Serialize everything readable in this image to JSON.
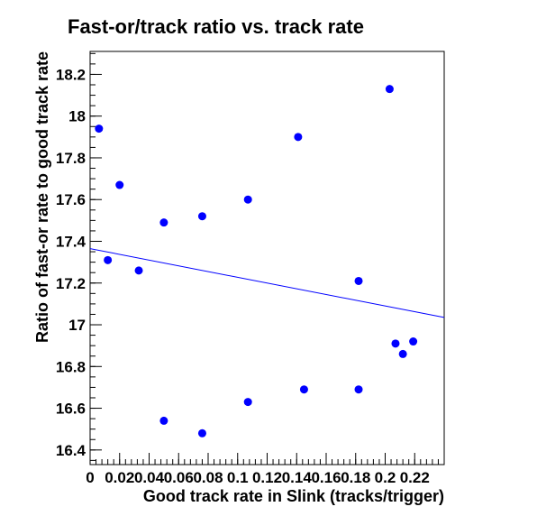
{
  "chart_data": {
    "type": "scatter",
    "title": "Fast-or/track ratio vs. track rate",
    "xlabel": "Good track rate in Slink (tracks/trigger)",
    "ylabel": "Ratio of fast-or rate to good track rate",
    "xlim": [
      0,
      0.24
    ],
    "ylim": [
      16.33,
      18.31
    ],
    "x_ticks": [
      0,
      0.02,
      0.04,
      0.06,
      0.08,
      0.1,
      0.12,
      0.14,
      0.16,
      0.18,
      0.2,
      0.22
    ],
    "x_tick_labels": [
      "0",
      "0.02",
      "0.04",
      "0.06",
      "0.08",
      "0.1",
      "0.12",
      "0.14",
      "0.16",
      "0.18",
      "0.2",
      "0.22"
    ],
    "y_ticks": [
      16.4,
      16.6,
      16.8,
      17,
      17.2,
      17.4,
      17.6,
      17.8,
      18,
      18.2
    ],
    "y_tick_labels": [
      "16.4",
      "16.6",
      "16.8",
      "17",
      "17.2",
      "17.4",
      "17.6",
      "17.8",
      "18",
      "18.2"
    ],
    "grid": false,
    "series": [
      {
        "color": "#0000ff",
        "points": [
          {
            "x": 0.006,
            "y": 17.94
          },
          {
            "x": 0.012,
            "y": 17.31
          },
          {
            "x": 0.02,
            "y": 17.67
          },
          {
            "x": 0.033,
            "y": 17.26
          },
          {
            "x": 0.05,
            "y": 17.49
          },
          {
            "x": 0.05,
            "y": 16.54
          },
          {
            "x": 0.076,
            "y": 17.52
          },
          {
            "x": 0.076,
            "y": 16.48
          },
          {
            "x": 0.107,
            "y": 17.6
          },
          {
            "x": 0.107,
            "y": 16.63
          },
          {
            "x": 0.141,
            "y": 17.9
          },
          {
            "x": 0.145,
            "y": 16.69
          },
          {
            "x": 0.182,
            "y": 17.21
          },
          {
            "x": 0.182,
            "y": 16.69
          },
          {
            "x": 0.203,
            "y": 18.13
          },
          {
            "x": 0.207,
            "y": 16.91
          },
          {
            "x": 0.212,
            "y": 16.86
          },
          {
            "x": 0.219,
            "y": 16.92
          }
        ]
      }
    ],
    "fit_line": {
      "color": "#0000ff",
      "x": [
        0,
        0.24
      ],
      "y": [
        17.365,
        17.035
      ]
    }
  }
}
